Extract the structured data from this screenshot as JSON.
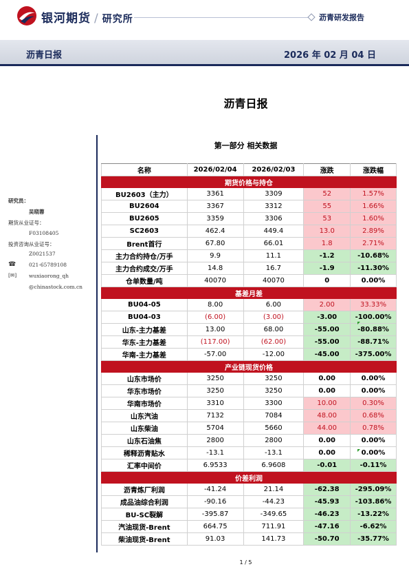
{
  "header": {
    "brand": "银河期货",
    "brand_sub": "研究所",
    "report_type": "沥青研发报告",
    "band_title": "沥青日报",
    "band_date": "2026 年 02 月 04 日"
  },
  "doc_title": "沥青日报",
  "section_title": "第一部分 相关数据",
  "sidebar": {
    "researcher_label": "研究员：",
    "researcher_name": "吴晓蓉",
    "futures_cert_label": "期货从业证号：",
    "futures_cert": "F03108405",
    "invest_cert_label": "投资咨询从业证号：",
    "invest_cert": "Z0021537",
    "phone_icon": "phone-icon",
    "phone": "021-65789108",
    "mail_icon": "mail-icon",
    "email_user": "wuxiaorong_qh",
    "email_domain": "@chinastock.com.cn"
  },
  "table": {
    "headers": [
      "名称",
      "2026/02/04",
      "2026/02/03",
      "涨跌",
      "涨跌幅"
    ],
    "sections": [
      {
        "title": "期货价格与持仓",
        "rows": [
          [
            "BU2603（主力）",
            "3361",
            "3309",
            "52",
            "1.57%",
            "red"
          ],
          [
            "BU2604",
            "3367",
            "3312",
            "55",
            "1.66%",
            "red"
          ],
          [
            "BU2605",
            "3359",
            "3306",
            "53",
            "1.60%",
            "red"
          ],
          [
            "SC2603",
            "462.4",
            "449.4",
            "13.0",
            "2.89%",
            "red"
          ],
          [
            "Brent首行",
            "67.80",
            "66.01",
            "1.8",
            "2.71%",
            "red"
          ],
          [
            "主力合约持仓/万手",
            "9.9",
            "11.1",
            "-1.2",
            "-10.68%",
            "green"
          ],
          [
            "主力合约成交/万手",
            "14.8",
            "16.7",
            "-1.9",
            "-11.30%",
            "green"
          ],
          [
            "仓单数量/吨",
            "40070",
            "40070",
            "0",
            "0.00%",
            "bold"
          ]
        ]
      },
      {
        "title": "基差月差",
        "rows": [
          [
            "BU04-05",
            "8.00",
            "6.00",
            "2.00",
            "33.33%",
            "red"
          ],
          [
            "BU04-03",
            "(6.00)",
            "(3.00)",
            "-3.00",
            "-100.00%",
            "green"
          ],
          [
            "山东-主力基差",
            "13.00",
            "68.00",
            "-55.00",
            "-80.88%",
            "green"
          ],
          [
            "华东-主力基差",
            "(117.00)",
            "(62.00)",
            "-55.00",
            "-88.71%",
            "green"
          ],
          [
            "华南-主力基差",
            "-57.00",
            "-12.00",
            "-45.00",
            "-375.00%",
            "green"
          ]
        ]
      },
      {
        "title": "产业链现货价格",
        "rows": [
          [
            "山东市场价",
            "3250",
            "3250",
            "0.00",
            "0.00%",
            "bold"
          ],
          [
            "华东市场价",
            "3250",
            "3250",
            "0.00",
            "0.00%",
            "bold"
          ],
          [
            "华南市场价",
            "3310",
            "3300",
            "10.00",
            "0.30%",
            "red"
          ],
          [
            "山东汽油",
            "7132",
            "7084",
            "48.00",
            "0.68%",
            "red"
          ],
          [
            "山东柴油",
            "5704",
            "5660",
            "44.00",
            "0.78%",
            "red"
          ],
          [
            "山东石油焦",
            "2800",
            "2800",
            "0.00",
            "0.00%",
            "bold"
          ],
          [
            "稀释沥青贴水",
            "-13.1",
            "-13.1",
            "0.00",
            "0.00%",
            "bold"
          ],
          [
            "汇率中间价",
            "6.9533",
            "6.9608",
            "-0.01",
            "-0.11%",
            "green"
          ]
        ]
      },
      {
        "title": "价差利润",
        "rows": [
          [
            "沥青炼厂利润",
            "-41.24",
            "21.14",
            "-62.38",
            "-295.09%",
            "green"
          ],
          [
            "成品油综合利润",
            "-90.16",
            "-44.23",
            "-45.93",
            "-103.86%",
            "green"
          ],
          [
            "BU-SC裂解",
            "-395.87",
            "-349.65",
            "-46.23",
            "-13.22%",
            "green"
          ],
          [
            "汽油现货-Brent",
            "664.75",
            "711.91",
            "-47.16",
            "-6.62%",
            "green"
          ],
          [
            "柴油现货-Brent",
            "91.03",
            "141.73",
            "-50.70",
            "-35.77%",
            "green"
          ]
        ]
      }
    ]
  },
  "colors": {
    "accent": "#c0121f",
    "navy": "#1a2a5a",
    "up_bg": "#fbc8cc",
    "down_bg": "#c6ecc6"
  },
  "footer": {
    "page": "1 / 5"
  }
}
